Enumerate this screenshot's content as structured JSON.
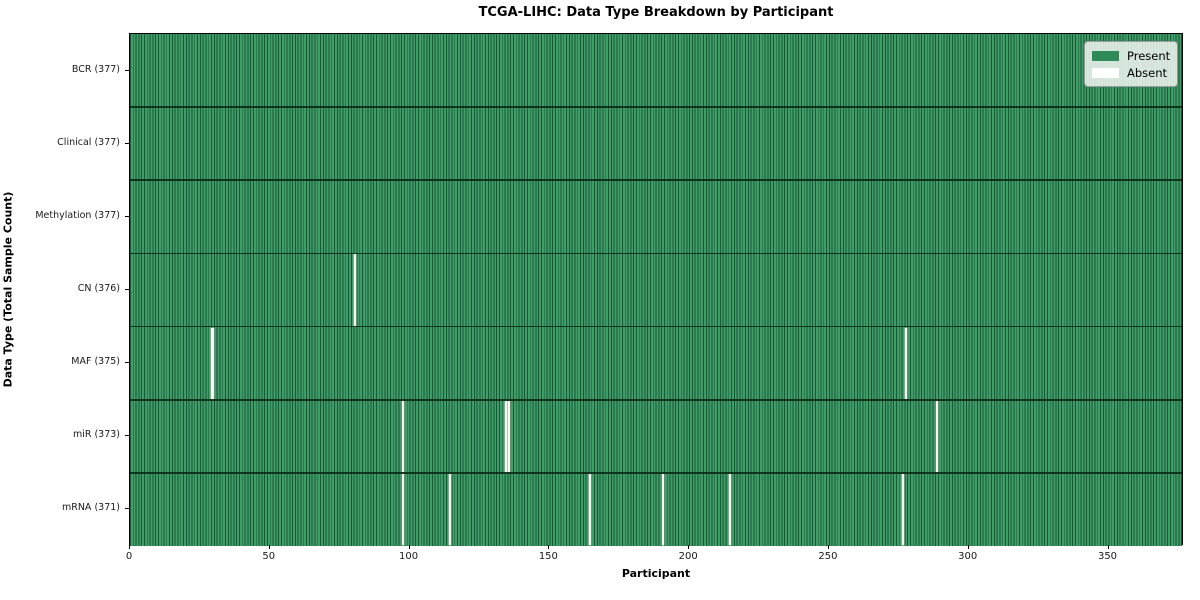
{
  "title": "TCGA-LIHC: Data Type Breakdown by Participant",
  "legend": {
    "items": [
      {
        "label": "Present",
        "color": "#2e8b57"
      },
      {
        "label": "Absent",
        "color": "#ffffff"
      }
    ],
    "position": "upper right"
  },
  "chart_data": {
    "type": "heatmap",
    "title": "TCGA-LIHC: Data Type Breakdown by Participant",
    "xlabel": "Participant",
    "ylabel": "Data Type (Total Sample Count)",
    "x_range": [
      0,
      377
    ],
    "n_participants": 377,
    "x_ticks": [
      0,
      50,
      100,
      150,
      200,
      250,
      300,
      350
    ],
    "grid": false,
    "legend_position": "upper right",
    "colors": {
      "present": "#2e8b57",
      "present_fill": "#3f9d68",
      "cell_edge": "#1d5737",
      "absent": "#f7f7f2",
      "row_separator": "#062614"
    },
    "rows": [
      {
        "name": "BCR",
        "label": "BCR (377)",
        "total": 377,
        "absent_participants": []
      },
      {
        "name": "Clinical",
        "label": "Clinical (377)",
        "total": 377,
        "absent_participants": []
      },
      {
        "name": "Methylation",
        "label": "Methylation (377)",
        "total": 377,
        "absent_participants": []
      },
      {
        "name": "CN",
        "label": "CN (376)",
        "total": 376,
        "absent_participants": [
          80
        ]
      },
      {
        "name": "MAF",
        "label": "MAF (375)",
        "total": 375,
        "absent_participants": [
          29,
          277
        ]
      },
      {
        "name": "miR",
        "label": "miR (373)",
        "total": 373,
        "absent_participants": [
          97,
          134,
          135,
          288
        ]
      },
      {
        "name": "mRNA",
        "label": "mRNA (371)",
        "total": 371,
        "absent_participants": [
          97,
          114,
          164,
          190,
          214,
          276
        ]
      }
    ]
  }
}
